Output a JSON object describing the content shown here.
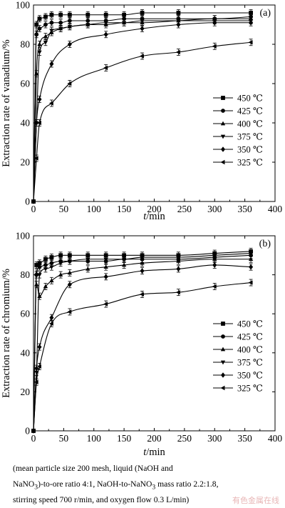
{
  "chart_data": [
    {
      "type": "line",
      "panel_label": "(a)",
      "ylabel": "Extraction rate of vanadium/%",
      "xlabel": "t/min",
      "xlabel_italic": "t",
      "xlabel_unit": "/min",
      "xlim": [
        0,
        400
      ],
      "ylim": [
        0,
        100
      ],
      "xticks": [
        0,
        50,
        100,
        150,
        200,
        250,
        300,
        350,
        400
      ],
      "yticks": [
        0,
        20,
        40,
        60,
        80,
        100
      ],
      "legend_position": "center-right",
      "series": [
        {
          "name": "450 ℃",
          "marker": "square",
          "x": [
            0,
            5,
            10,
            20,
            30,
            45,
            60,
            90,
            120,
            150,
            180,
            240,
            360
          ],
          "y": [
            0,
            90,
            93,
            94,
            95,
            95,
            95,
            95,
            95,
            95,
            96,
            96,
            96
          ]
        },
        {
          "name": "425 ℃",
          "marker": "circle",
          "x": [
            0,
            5,
            10,
            20,
            30,
            45,
            60,
            90,
            120,
            150,
            180,
            240,
            300,
            360
          ],
          "y": [
            0,
            85,
            88,
            90,
            91,
            91,
            92,
            92,
            92,
            93,
            93,
            93,
            93,
            94
          ]
        },
        {
          "name": "400 ℃",
          "marker": "triangle-up",
          "x": [
            0,
            5,
            10,
            20,
            30,
            45,
            60,
            90,
            120,
            150,
            180,
            240,
            300,
            360
          ],
          "y": [
            0,
            65,
            80,
            84,
            86,
            88,
            89,
            90,
            90,
            91,
            91,
            92,
            93,
            93
          ]
        },
        {
          "name": "375 ℃",
          "marker": "triangle-down",
          "x": [
            0,
            5,
            10,
            20,
            30,
            45,
            60,
            90,
            120,
            150,
            180,
            240,
            300,
            360
          ],
          "y": [
            0,
            40,
            76,
            81,
            87,
            88,
            89,
            90,
            91,
            91,
            92,
            92,
            92,
            92
          ]
        },
        {
          "name": "350 ℃",
          "marker": "diamond",
          "x": [
            0,
            5,
            10,
            30,
            60,
            120,
            180,
            240,
            300,
            360
          ],
          "y": [
            0,
            40,
            52,
            70,
            80,
            85,
            88,
            90,
            91,
            91
          ]
        },
        {
          "name": "325 ℃",
          "marker": "triangle-left",
          "x": [
            0,
            5,
            10,
            30,
            60,
            120,
            180,
            240,
            300,
            360
          ],
          "y": [
            0,
            22,
            40,
            50,
            60,
            68,
            74,
            76,
            79,
            81
          ]
        }
      ]
    },
    {
      "type": "line",
      "panel_label": "(b)",
      "ylabel": "Extraction rate of chromium/%",
      "xlabel": "t/min",
      "xlabel_italic": "t",
      "xlabel_unit": "/min",
      "xlim": [
        0,
        400
      ],
      "ylim": [
        0,
        100
      ],
      "xticks": [
        0,
        50,
        100,
        150,
        200,
        250,
        300,
        350,
        400
      ],
      "yticks": [
        0,
        20,
        40,
        60,
        80,
        100
      ],
      "legend_position": "center-right",
      "series": [
        {
          "name": "450 ℃",
          "marker": "square",
          "x": [
            0,
            5,
            10,
            20,
            30,
            45,
            60,
            90,
            120,
            150,
            180,
            240,
            300,
            360
          ],
          "y": [
            0,
            85,
            86,
            88,
            89,
            90,
            90,
            90,
            90,
            90,
            90,
            90,
            91,
            92
          ]
        },
        {
          "name": "425 ℃",
          "marker": "circle",
          "x": [
            0,
            5,
            10,
            20,
            30,
            45,
            60,
            90,
            120,
            150,
            180,
            240,
            300,
            360
          ],
          "y": [
            0,
            80,
            84,
            85,
            86,
            87,
            87,
            87,
            87,
            88,
            88,
            88,
            89,
            90
          ]
        },
        {
          "name": "400 ℃",
          "marker": "triangle-up",
          "x": [
            0,
            5,
            10,
            20,
            30,
            45,
            60,
            90,
            120,
            150,
            180,
            240,
            300,
            360
          ],
          "y": [
            0,
            75,
            69,
            74,
            77,
            80,
            81,
            83,
            84,
            85,
            86,
            87,
            88,
            88
          ]
        },
        {
          "name": "375 ℃",
          "marker": "triangle-down",
          "x": [
            0,
            5,
            10,
            20,
            30,
            45,
            60,
            90,
            120,
            150,
            180,
            240,
            300,
            360
          ],
          "y": [
            0,
            30,
            80,
            83,
            84,
            86,
            87,
            88,
            88,
            88,
            89,
            89,
            90,
            91
          ]
        },
        {
          "name": "350 ℃",
          "marker": "diamond",
          "x": [
            0,
            5,
            10,
            30,
            60,
            120,
            180,
            240,
            300,
            360
          ],
          "y": [
            0,
            32,
            43,
            58,
            75,
            79,
            82,
            83,
            85,
            84
          ]
        },
        {
          "name": "325 ℃",
          "marker": "triangle-left",
          "x": [
            0,
            5,
            10,
            30,
            60,
            120,
            180,
            240,
            300,
            360
          ],
          "y": [
            0,
            25,
            33,
            55,
            61,
            65,
            70,
            71,
            74,
            76
          ]
        }
      ]
    }
  ],
  "caption": {
    "line1": "(mean particle size 200 mesh, liquid (NaOH and",
    "line2_pre": "NaNO",
    "line2_sub1": "3",
    "line2_mid": ")-to-ore ratio 4:1, NaOH-to-NaNO",
    "line2_sub2": "3",
    "line2_post": " mass ratio 2.2:1.8,",
    "line3": "stirring speed 700 r/min, and oxygen flow 0.3 L/min)"
  },
  "watermark": "有色金属在线"
}
